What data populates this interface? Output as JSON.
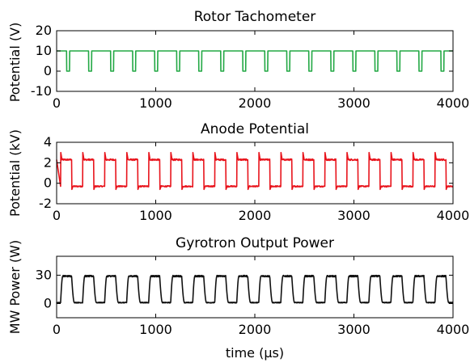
{
  "chart_data": [
    {
      "type": "line",
      "title": "Rotor Tachometer",
      "ylabel": "Potential (V)",
      "xlabel": "",
      "xlim": [
        0,
        4000
      ],
      "ylim": [
        -10,
        20
      ],
      "xticks": [
        0,
        1000,
        2000,
        3000,
        4000
      ],
      "xtick_labels": [
        "0",
        "1000",
        "2000",
        "3000",
        "4000"
      ],
      "yticks": [
        -10,
        0,
        10,
        20
      ],
      "ytick_labels": [
        "-10",
        "0",
        "10",
        "20"
      ],
      "grid": false,
      "series": [
        {
          "color": "#22a844",
          "waveform": "square",
          "period_us": 222.2,
          "first_low_start_us": 100,
          "low_duration_us": 30,
          "high_value": 10,
          "low_value": 0
        }
      ]
    },
    {
      "type": "line",
      "title": "Anode Potential",
      "ylabel": "Potential (kV)",
      "xlabel": "",
      "xlim": [
        0,
        4000
      ],
      "ylim": [
        -2,
        4
      ],
      "xticks": [
        0,
        1000,
        2000,
        3000,
        4000
      ],
      "xtick_labels": [
        "0",
        "1000",
        "2000",
        "3000",
        "4000"
      ],
      "yticks": [
        -2,
        0,
        2,
        4
      ],
      "ytick_labels": [
        "-2",
        "0",
        "2",
        "4"
      ],
      "grid": false,
      "series": [
        {
          "color": "#e8141c",
          "waveform": "square-overshoot",
          "period_us": 222.2,
          "first_rise_us": 40,
          "high_duration_us": 111,
          "high_value": 2.3,
          "high_peak": 3.0,
          "low_value": -0.3,
          "low_trough": -0.6
        }
      ]
    },
    {
      "type": "line",
      "title": "Gyrotron Output Power",
      "ylabel": "MW Power (W)",
      "xlabel": "time (μs)",
      "xlim": [
        0,
        4000
      ],
      "ylim": [
        -15,
        50
      ],
      "xticks": [
        0,
        1000,
        2000,
        3000,
        4000
      ],
      "xtick_labels": [
        "0",
        "1000",
        "2000",
        "3000",
        "4000"
      ],
      "yticks": [
        0,
        30
      ],
      "ytick_labels": [
        "0",
        "30"
      ],
      "grid": false,
      "series": [
        {
          "color": "#111111",
          "waveform": "rounded-square",
          "period_us": 222.2,
          "first_rise_us": 40,
          "high_duration_us": 111,
          "high_value": 29,
          "low_value": 1
        }
      ]
    }
  ]
}
